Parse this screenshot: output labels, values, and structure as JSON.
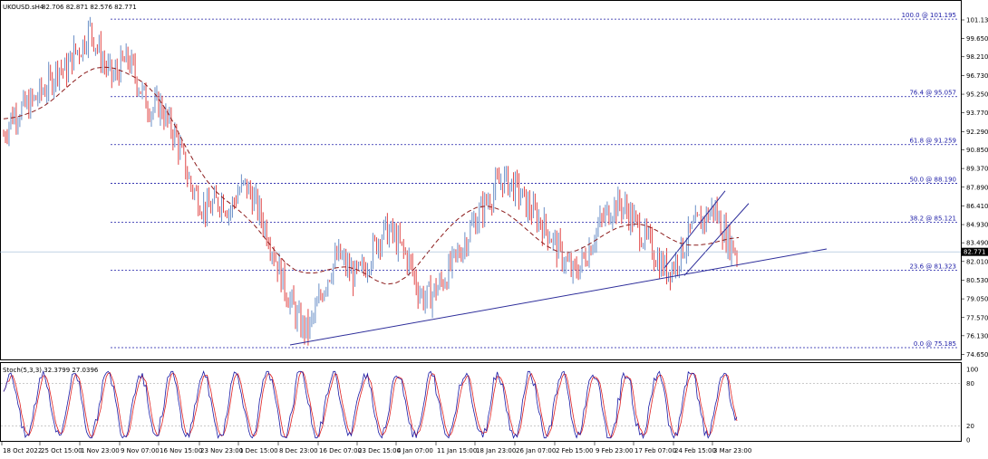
{
  "header": {
    "symbol": "UKOUSD.sH4",
    "ohlc": "82.706 82.871 82.576 82.771"
  },
  "stoch": {
    "label": "Stoch(5,3,3) 32.3799 27.0396",
    "levels": [
      "100",
      "80",
      "20",
      "0"
    ]
  },
  "price_axis": {
    "ticks": [
      "101.130",
      "99.650",
      "98.210",
      "96.730",
      "95.250",
      "93.770",
      "92.290",
      "90.850",
      "89.370",
      "87.890",
      "86.410",
      "84.930",
      "83.490",
      "82.010",
      "80.530",
      "79.050",
      "77.570",
      "76.130",
      "74.650"
    ],
    "current_price": "82.771"
  },
  "time_axis": {
    "labels": [
      "18 Oct 2022",
      "25 Oct 15:00",
      "1 Nov 23:00",
      "9 Nov 07:00",
      "16 Nov 15:00",
      "23 Nov 23:00",
      "1 Dec 15:00",
      "8 Dec 23:00",
      "16 Dec 07:00",
      "23 Dec 15:00",
      "4 Jan 07:00",
      "11 Jan 15:00",
      "18 Jan 23:00",
      "26 Jan 07:00",
      "2 Feb 15:00",
      "9 Feb 23:00",
      "17 Feb 07:00",
      "24 Feb 15:00",
      "3 Mar 23:00"
    ]
  },
  "fib_labels": [
    "100.0 @ 101.195",
    "76.4 @ 95.057",
    "61.8 @ 91.259",
    "50.0 @ 88.190",
    "38.2 @ 85.121",
    "23.6 @ 81.323",
    "0.0 @ 75.185"
  ],
  "colors": {
    "up": "#6a8fc7",
    "down": "#e04545",
    "ma": "#8b1a1a",
    "fib": "#1a1aa6",
    "trend": "#2d2d9a",
    "stoch_main": "#1a1aa6",
    "stoch_signal": "#e02020"
  },
  "chart_data": {
    "type": "candlestick",
    "timeframe": "H4",
    "symbol": "UKOUSD.s",
    "ylim": [
      74.65,
      101.13
    ],
    "fibonacci": [
      {
        "ratio": 100.0,
        "price": 101.195
      },
      {
        "ratio": 76.4,
        "price": 95.057
      },
      {
        "ratio": 61.8,
        "price": 91.259
      },
      {
        "ratio": 50.0,
        "price": 88.19
      },
      {
        "ratio": 38.2,
        "price": 85.121
      },
      {
        "ratio": 23.6,
        "price": 81.323
      },
      {
        "ratio": 0.0,
        "price": 75.185
      }
    ],
    "close_path": [
      92.0,
      93.5,
      94.0,
      94.3,
      94.8,
      95.5,
      96.2,
      97.5,
      97.0,
      98.5,
      99.0,
      100.5,
      99.0,
      97.5,
      96.5,
      97.5,
      98.0,
      96.5,
      95.0,
      94.0,
      94.5,
      93.0,
      92.0,
      90.0,
      88.0,
      87.0,
      86.0,
      86.5,
      87.0,
      86.0,
      87.5,
      88.0,
      87.0,
      85.5,
      84.0,
      82.0,
      80.0,
      78.5,
      77.0,
      76.5,
      78.0,
      80.0,
      81.5,
      82.5,
      81.5,
      80.8,
      81.2,
      82.5,
      83.8,
      84.5,
      84.0,
      83.0,
      82.0,
      80.0,
      79.0,
      79.5,
      80.2,
      81.2,
      82.3,
      83.4,
      84.8,
      85.8,
      86.8,
      87.8,
      88.5,
      88.2,
      87.5,
      86.5,
      85.8,
      85.0,
      84.2,
      83.0,
      82.0,
      81.0,
      81.8,
      83.0,
      84.5,
      85.5,
      86.3,
      86.5,
      86.0,
      85.0,
      84.0,
      83.2,
      82.0,
      81.3,
      81.8,
      83.0,
      84.2,
      85.0,
      85.5,
      86.3,
      84.8,
      83.5,
      82.8
    ],
    "ma_path": [
      93.3,
      93.4,
      93.6,
      93.9,
      94.3,
      94.9,
      95.6,
      96.3,
      96.9,
      97.3,
      97.4,
      97.3,
      97.0,
      96.6,
      96.1,
      95.3,
      94.2,
      92.8,
      91.2,
      89.8,
      88.6,
      87.6,
      86.9,
      86.3,
      85.6,
      84.8,
      83.8,
      82.8,
      81.9,
      81.3,
      81.1,
      81.1,
      81.3,
      81.5,
      81.6,
      81.4,
      81.0,
      80.5,
      80.2,
      80.3,
      80.8,
      81.6,
      82.6,
      83.6,
      84.5,
      85.3,
      85.9,
      86.3,
      86.4,
      86.2,
      85.8,
      85.2,
      84.5,
      83.8,
      83.2,
      82.8,
      82.7,
      82.9,
      83.3,
      83.8,
      84.3,
      84.7,
      84.9,
      85.0,
      84.8,
      84.4,
      83.9,
      83.5,
      83.3,
      83.3,
      83.4,
      83.6,
      83.8,
      83.9
    ],
    "trendlines": [
      {
        "from": {
          "time": "8 Dec 2022",
          "price": 75.4
        },
        "to": {
          "time": "projected",
          "price": 83.0
        }
      },
      {
        "name": "channel-upper",
        "from": {
          "time": "17 Feb",
          "price": 81.5
        },
        "to": {
          "time": "3 Mar",
          "price": 87.6
        }
      },
      {
        "name": "channel-lower",
        "from": {
          "time": "20 Feb",
          "price": 80.9
        },
        "to": {
          "time": "3 Mar+",
          "price": 86.6
        }
      }
    ],
    "indicator": {
      "name": "Stochastic",
      "params": [
        5,
        3,
        3
      ],
      "main": 32.3799,
      "signal": 27.0396,
      "levels": [
        100,
        80,
        20,
        0
      ]
    }
  }
}
